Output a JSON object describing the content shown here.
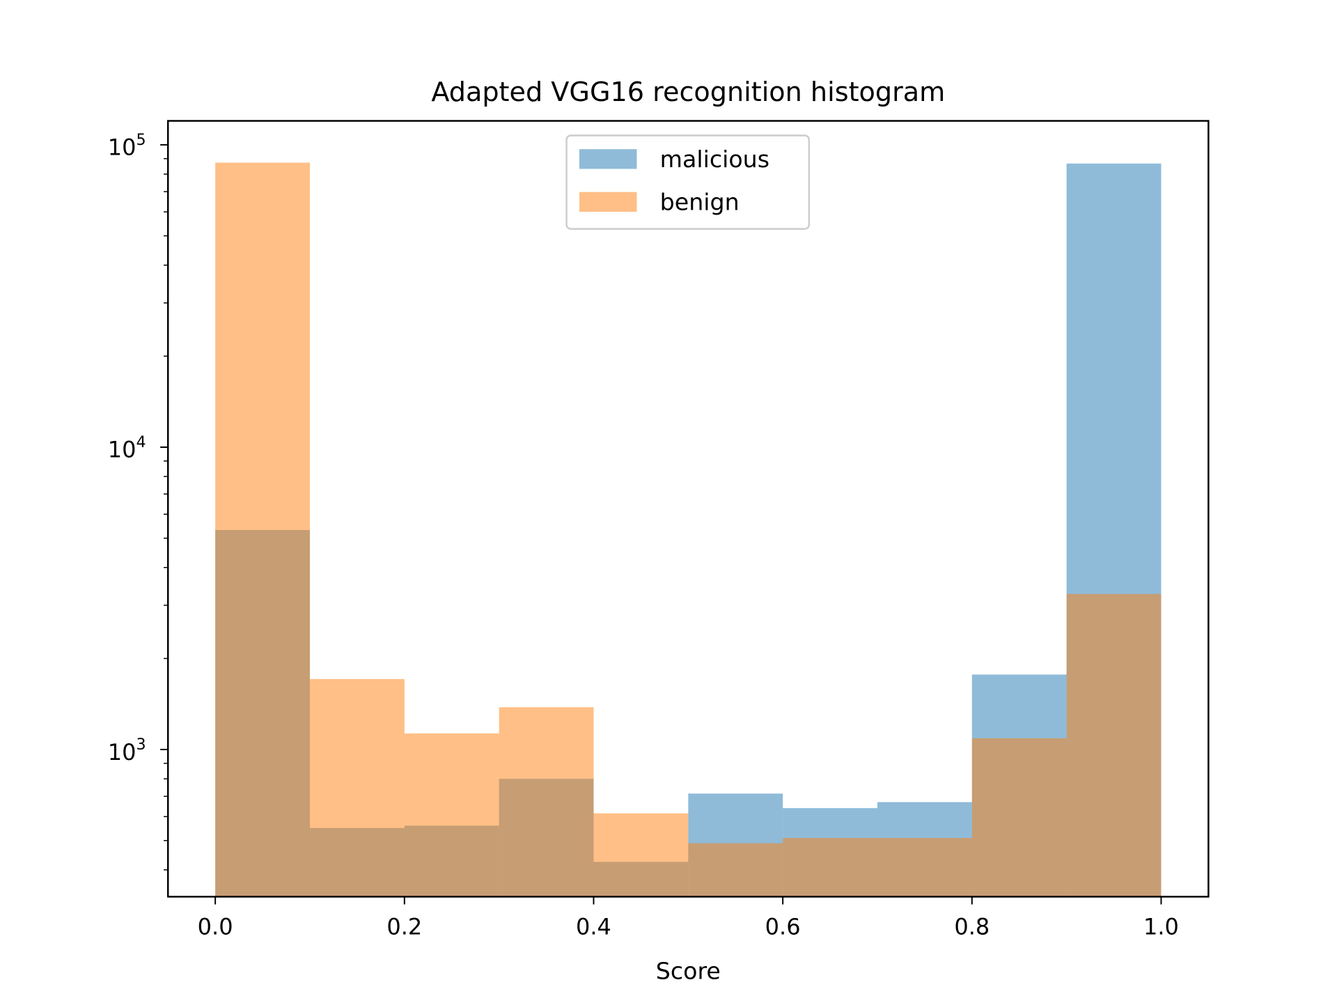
{
  "chart_data": {
    "type": "bar",
    "subtype": "histogram",
    "title": "Adapted VGG16 recognition histogram",
    "xlabel": "Score",
    "ylabel": "",
    "yscale": "log",
    "xlim": [
      -0.05,
      1.05
    ],
    "ylim": [
      326,
      120000
    ],
    "bin_edges": [
      0.0,
      0.1,
      0.2,
      0.3,
      0.4,
      0.5,
      0.6,
      0.7,
      0.8,
      0.9,
      1.0
    ],
    "x_ticks": [
      "0.0",
      "0.2",
      "0.4",
      "0.6",
      "0.8",
      "1.0"
    ],
    "x_tick_values": [
      0.0,
      0.2,
      0.4,
      0.6,
      0.8,
      1.0
    ],
    "y_ticks": [
      {
        "base": "10",
        "exp": "3",
        "value": 1000
      },
      {
        "base": "10",
        "exp": "4",
        "value": 10000
      },
      {
        "base": "10",
        "exp": "5",
        "value": 100000
      }
    ],
    "legend_position": "top-center",
    "series": [
      {
        "name": "malicious",
        "color": "#1f77b4",
        "alpha": 0.5,
        "values": [
          5320,
          550,
          560,
          800,
          425,
          715,
          640,
          670,
          1770,
          86700
        ]
      },
      {
        "name": "benign",
        "color": "#ff7f0e",
        "alpha": 0.5,
        "values": [
          87300,
          1710,
          1130,
          1380,
          615,
          490,
          510,
          510,
          1090,
          3270
        ]
      }
    ]
  }
}
